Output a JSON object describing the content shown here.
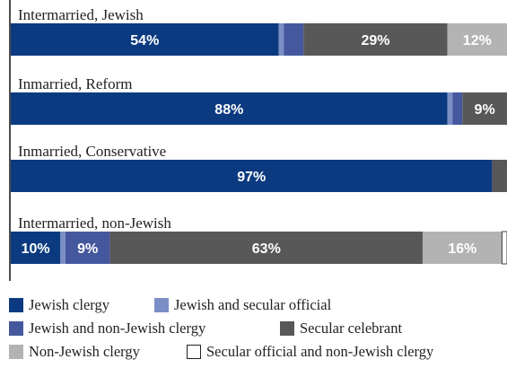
{
  "chart_data": {
    "type": "bar",
    "orientation": "horizontal",
    "stacked": true,
    "xlim": [
      0,
      100
    ],
    "categories": [
      "Intermarried, Jewish",
      "Inmarried, Reform",
      "Inmarried, Conservative",
      "Intermarried, non-Jewish"
    ],
    "series": [
      {
        "name": "Jewish clergy",
        "color": "#0b3a80",
        "values": [
          54,
          88,
          97,
          10
        ]
      },
      {
        "name": "Jewish and secular official",
        "color": "#7c8ec6",
        "values": [
          1,
          1,
          0,
          1
        ]
      },
      {
        "name": "Jewish and non-Jewish clergy",
        "color": "#45589e",
        "values": [
          4,
          2,
          0,
          9
        ]
      },
      {
        "name": "Secular celebrant",
        "color": "#585858",
        "values": [
          29,
          9,
          3,
          63
        ]
      },
      {
        "name": "Non-Jewish clergy",
        "color": "#b3b3b3",
        "values": [
          12,
          0,
          0,
          16
        ]
      },
      {
        "name": "Secular official and non-Jewish clergy",
        "color": "#ffffff",
        "values": [
          0,
          0,
          0,
          1
        ]
      }
    ],
    "data_labels": [
      [
        "54%",
        "",
        "",
        "29%",
        "12%",
        ""
      ],
      [
        "88%",
        "",
        "",
        "9%",
        "",
        ""
      ],
      [
        "97%",
        "",
        "",
        "",
        "",
        ""
      ],
      [
        "10%",
        "",
        "9%",
        "63%",
        "16%",
        ""
      ]
    ],
    "legend": {
      "placement": "bottom",
      "rows": [
        [
          "Jewish clergy",
          "Jewish and secular official"
        ],
        [
          "Jewish and non-Jewish clergy",
          "Secular celebrant"
        ],
        [
          "Non-Jewish clergy",
          "Secular official and non-Jewish clergy"
        ]
      ]
    }
  }
}
